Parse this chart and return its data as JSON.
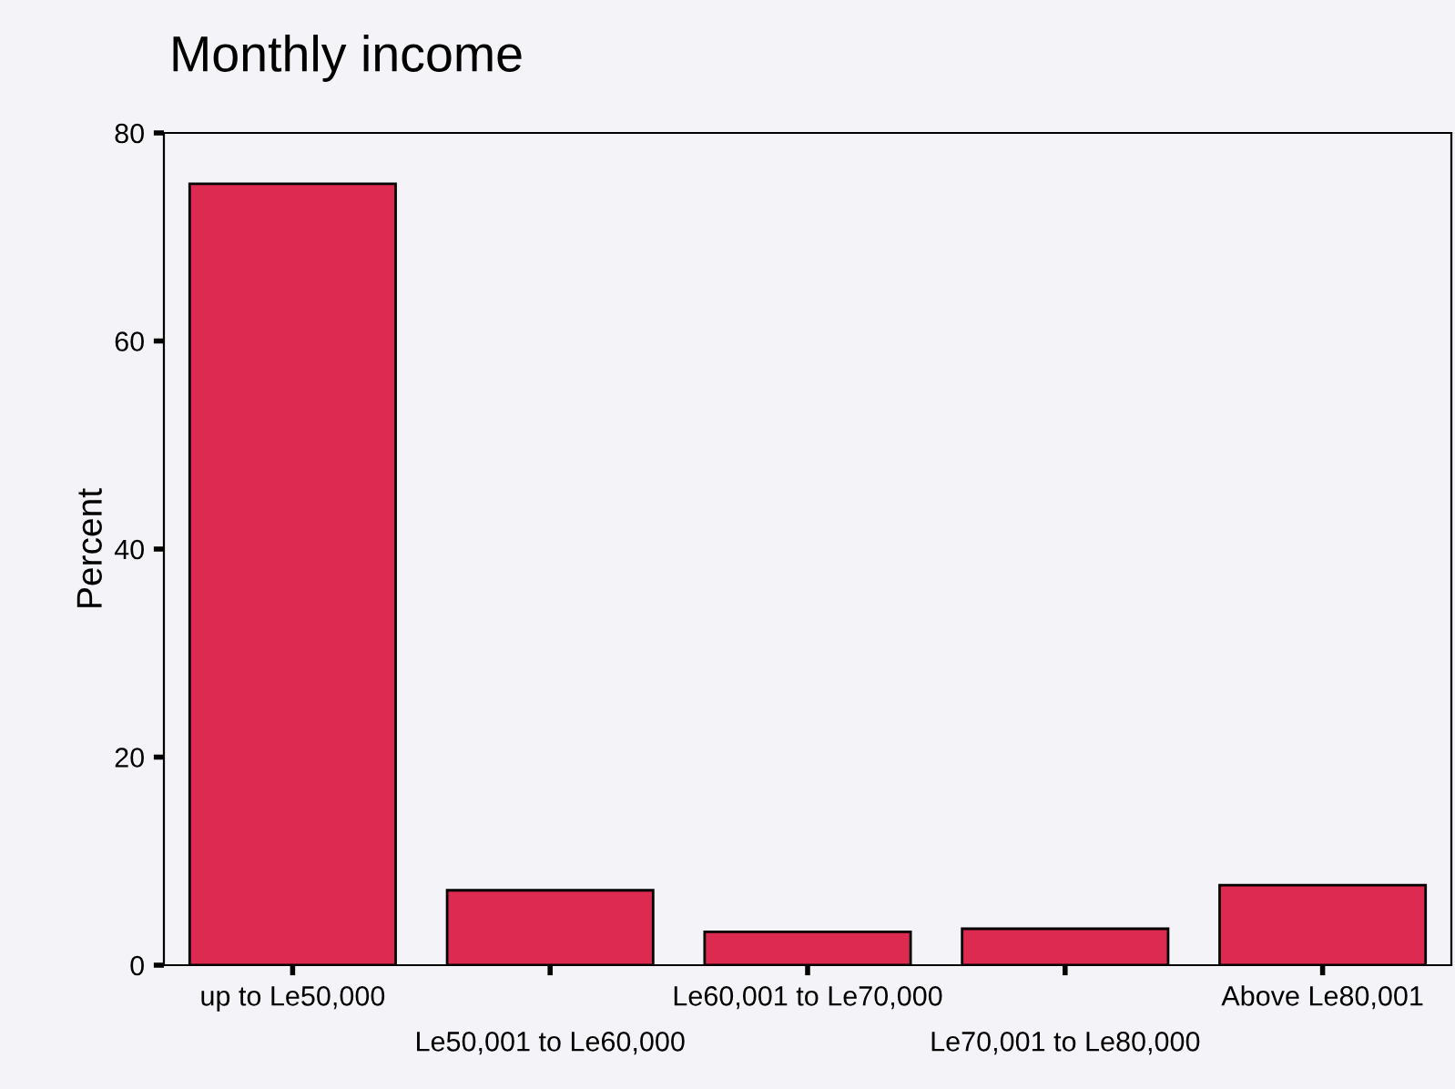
{
  "chart_data": {
    "type": "bar",
    "title": "Monthly income",
    "ylabel": "Percent",
    "categories": [
      "up to Le50,000",
      "Le50,001 to Le60,000",
      "Le60,001 to Le70,000",
      "Le70,001 to Le80,000",
      "Above Le80,001"
    ],
    "values": [
      75.1,
      7.2,
      3.2,
      3.5,
      7.7
    ],
    "color": "#dc2a50",
    "ylim": [
      0,
      80
    ],
    "yticks": [
      0,
      20,
      40,
      60,
      80
    ],
    "grid": false
  }
}
